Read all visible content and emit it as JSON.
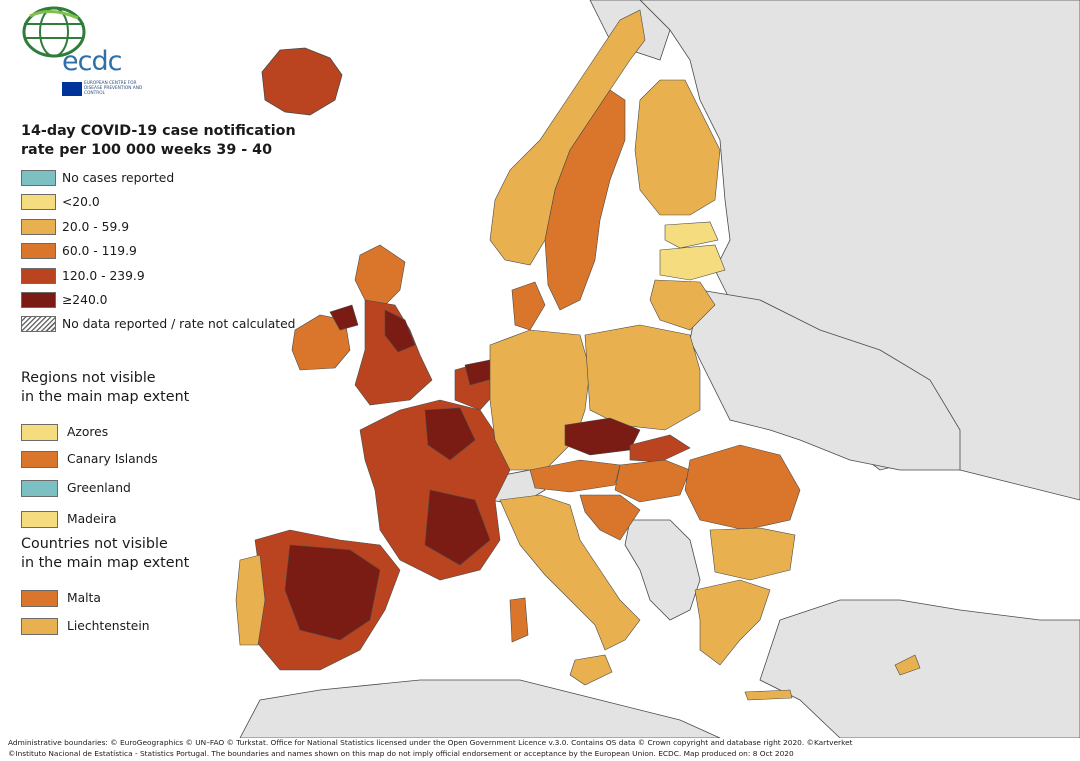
{
  "logo": {
    "wordmark": "ecdc",
    "agency": "European Centre for Disease Prevention and Control",
    "icon": "globe-logo-icon"
  },
  "title": {
    "line1": "14-day COVID-19 case notification",
    "line2": "rate per 100 000 weeks 39 - 40"
  },
  "legend": [
    {
      "label": "No cases reported",
      "color": "#7dc0c4"
    },
    {
      "label": "<20.0",
      "color": "#f5dc7e"
    },
    {
      "label": "20.0 - 59.9",
      "color": "#e8b04e"
    },
    {
      "label": "60.0 - 119.9",
      "color": "#d9762b"
    },
    {
      "label": "120.0 - 239.9",
      "color": "#b9441f"
    },
    {
      "label": "≥240.0",
      "color": "#7a1c14"
    },
    {
      "label": "No data reported / rate not calculated",
      "color": "hatch"
    }
  ],
  "regions_heading": {
    "line1": "Regions not visible",
    "line2": "in the main map extent"
  },
  "regions": [
    {
      "label": "Azores",
      "color": "#f5dc7e"
    },
    {
      "label": "Canary Islands",
      "color": "#d9762b"
    },
    {
      "label": "Greenland",
      "color": "#7dc0c4"
    },
    {
      "label": "Madeira",
      "color": "#f5dc7e"
    }
  ],
  "countries_heading": {
    "line1": "Countries not visible",
    "line2": "in the main map extent"
  },
  "countries": [
    {
      "label": "Malta",
      "color": "#d9762b"
    },
    {
      "label": "Liechtenstein",
      "color": "#e8b04e"
    }
  ],
  "map_colors": {
    "sea": "#ffffff",
    "non_eu": "#e3e3e3",
    "border": "#4a4a4a",
    "region_border": "#8a6a50"
  },
  "credits": {
    "line1": "Administrative boundaries: © EuroGeographics © UN–FAO © Turkstat. Office for National Statistics licensed under the Open Government Licence v.3.0. Contains OS data © Crown copyright and database right 2020. ©Kartverket",
    "line2": "©Instituto Nacional de Estatística - Statistics Portugal. The boundaries and names shown on this map do not imply official endorsement or acceptance by the European Union. ECDC. Map produced on: 8 Oct 2020"
  }
}
